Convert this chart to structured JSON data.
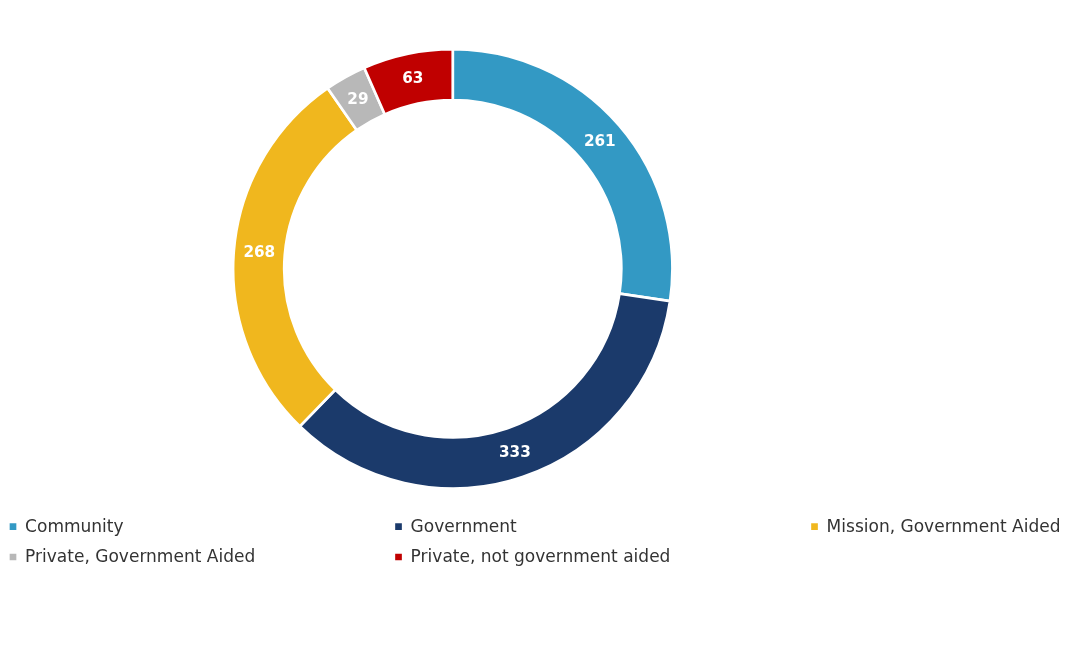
{
  "chart_data": {
    "type": "donut",
    "categories": [
      "Community",
      "Government",
      "Mission, Government Aided",
      "Private, Government Aided",
      "Private, not government aided"
    ],
    "values": [
      261,
      333,
      268,
      29,
      63
    ],
    "colors": [
      "#3399c4",
      "#1b3a6b",
      "#f0b71e",
      "#b8b8b8",
      "#c00000"
    ],
    "data_labels": true,
    "legend": "bottom"
  }
}
